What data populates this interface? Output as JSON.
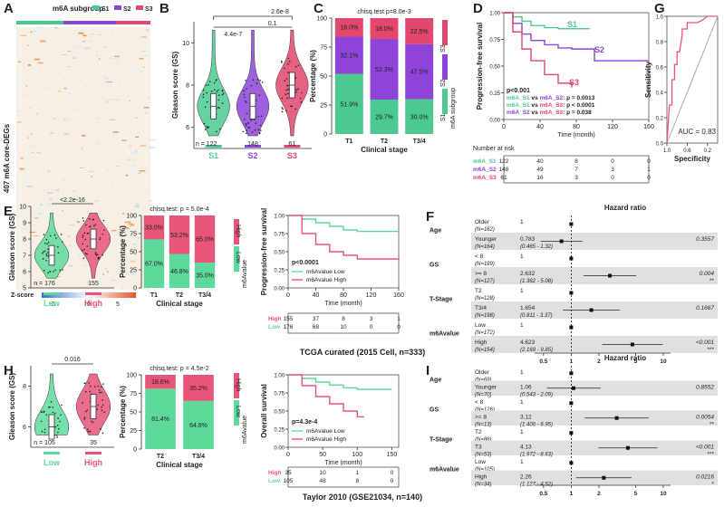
{
  "colors": {
    "s1": "#4cc98f",
    "s2": "#8e44d9",
    "s3": "#e2476d",
    "low": "#5fd99a",
    "high": "#e8547a",
    "grid": "#d9d9d9"
  },
  "panel_labels": {
    "A": "A",
    "B": "B",
    "C": "C",
    "D": "D",
    "E": "E",
    "F": "F",
    "G": "G",
    "H": "H",
    "I": "I"
  },
  "section_titles": {
    "tcga": "TCGA curated (2015 Cell, n=333)",
    "taylor": "Taylor 2010 (GSE21034, n=140)"
  },
  "chart_data": [
    {
      "panel": "A",
      "type": "heatmap",
      "title": "m6A subgroup",
      "ylabel": "407 m6A core-DEGs",
      "groups": [
        "S1",
        "S2",
        "S3"
      ],
      "legend_title": "Z-score",
      "scale_ticks": [
        "-5",
        "0",
        "5"
      ]
    },
    {
      "panel": "B",
      "type": "violin",
      "ylabel": "Gleason score (GS)",
      "categories": [
        "S1",
        "S2",
        "S3"
      ],
      "medians": [
        7,
        7,
        8
      ],
      "ylim": [
        5,
        10
      ],
      "yticks": [
        "6",
        "8",
        "10"
      ],
      "counts": [
        "n = 122",
        "148",
        "61"
      ],
      "pvalues": {
        "s1_s3": "2.6e-8",
        "s1_s2": "4.4e-7",
        "s2_s3": "0.1"
      }
    },
    {
      "panel": "C",
      "type": "stacked-bar",
      "title": "chisq.test p=8.0e-3",
      "xlabel": "Clinical stage",
      "ylabel": "Percentage (%)",
      "categories": [
        "T1",
        "T2",
        "T3/4"
      ],
      "legend_title": "m6A subgroup",
      "legend": [
        "S1",
        "S2",
        "S3"
      ],
      "series": [
        {
          "name": "S1",
          "values": [
            51.9,
            29.7,
            30.0
          ]
        },
        {
          "name": "S2",
          "values": [
            32.1,
            52.3,
            47.5
          ]
        },
        {
          "name": "S3",
          "values": [
            16.0,
            18.0,
            22.5
          ]
        }
      ],
      "yticks": [
        "0",
        "25",
        "50",
        "75",
        "100"
      ]
    },
    {
      "panel": "D",
      "type": "line",
      "title": "",
      "xlabel": "Time (month)",
      "ylabel": "Progression-free survival",
      "xticks": [
        "0",
        "40",
        "80",
        "120",
        "160"
      ],
      "yticks": [
        "0.00",
        "0.25",
        "0.50",
        "0.75",
        "1.00"
      ],
      "series": [
        {
          "name": "S1",
          "x": [
            0,
            10,
            20,
            30,
            45,
            60,
            75,
            95
          ],
          "y": [
            1.0,
            0.96,
            0.92,
            0.88,
            0.86,
            0.85,
            0.85,
            0.85
          ]
        },
        {
          "name": "S2",
          "x": [
            0,
            10,
            20,
            30,
            45,
            60,
            75,
            100,
            160
          ],
          "y": [
            1.0,
            0.9,
            0.8,
            0.74,
            0.7,
            0.67,
            0.66,
            0.55,
            0.55
          ]
        },
        {
          "name": "S3",
          "x": [
            0,
            10,
            20,
            30,
            45,
            60,
            75
          ],
          "y": [
            1.0,
            0.82,
            0.66,
            0.55,
            0.42,
            0.34,
            0.3
          ]
        }
      ],
      "stats": [
        "p<0.001",
        "m6A_S1 vs m6A_S2: p = 0.0013",
        "m6A_S1 vs m6A_S3: p < 0.0001",
        "m6A_S2 vs m6A_S3: p = 0.038"
      ],
      "risk_title": "Number at risk",
      "risk": [
        {
          "name": "m6A_S1",
          "values": [
            "122",
            "40",
            "8",
            "0",
            "0"
          ]
        },
        {
          "name": "m6A_S2",
          "values": [
            "148",
            "49",
            "7",
            "3",
            "1"
          ]
        },
        {
          "name": "m6A_S3",
          "values": [
            "61",
            "16",
            "3",
            "0",
            "0"
          ]
        }
      ]
    },
    {
      "panel": "G",
      "type": "line",
      "xlabel": "Specificity",
      "ylabel": "Sensitivity",
      "xticks": [
        "1.0",
        "0.6",
        "0.4",
        "0.2",
        "0.0"
      ],
      "yticks": [
        "0.0",
        "0.2",
        "0.4",
        "0.6",
        "0.8",
        "1.0"
      ],
      "auc": "AUC = 0.83",
      "x": [
        1.0,
        0.95,
        0.9,
        0.9,
        0.85,
        0.85,
        0.8,
        0.8,
        0.75,
        0.7,
        0.7,
        0.6,
        0.6,
        0.4,
        0.3,
        0.2,
        0.0
      ],
      "y": [
        0.0,
        0.3,
        0.3,
        0.5,
        0.5,
        0.62,
        0.62,
        0.72,
        0.72,
        0.85,
        0.9,
        0.9,
        0.95,
        0.95,
        0.97,
        1.0,
        1.0
      ]
    },
    {
      "panel": "E",
      "type": "violin",
      "ylabel": "Gleason score (GS)",
      "categories": [
        "Low",
        "High"
      ],
      "medians": [
        7,
        8
      ],
      "ylim": [
        5,
        10
      ],
      "yticks": [
        "5",
        "6",
        "7",
        "8",
        "9",
        "10"
      ],
      "counts": [
        "n = 176",
        "155"
      ],
      "pvalue": "<2.2e-16"
    },
    {
      "panel": "E2",
      "type": "stacked-bar",
      "title": "chisq.test: p = 5.0e-4",
      "xlabel": "Clinical stage",
      "ylabel": "Percentage (%)",
      "categories": [
        "T1",
        "T2",
        "T3/4"
      ],
      "legend_title": "m6Avalue",
      "legend": [
        "High",
        "Low"
      ],
      "series": [
        {
          "name": "Low",
          "values": [
            67.0,
            46.8,
            35.0
          ]
        },
        {
          "name": "High",
          "values": [
            33.0,
            53.2,
            65.0
          ]
        }
      ],
      "yticks": [
        "0",
        "25",
        "50",
        "75",
        "100"
      ]
    },
    {
      "panel": "E3",
      "type": "line",
      "xlabel": "Time (month)",
      "ylabel": "Progression-free survival",
      "xticks": [
        "0",
        "40",
        "80",
        "120",
        "160"
      ],
      "yticks": [
        "0.00",
        "0.25",
        "0.50",
        "0.75",
        "1.00"
      ],
      "pvalue": "p<0.0001",
      "legend": [
        "m6Avalue Low",
        "m6Avalue High"
      ],
      "series": [
        {
          "name": "Low",
          "x": [
            0,
            20,
            40,
            60,
            80,
            100,
            160
          ],
          "y": [
            1.0,
            0.95,
            0.9,
            0.85,
            0.8,
            0.78,
            0.78
          ]
        },
        {
          "name": "High",
          "x": [
            0,
            20,
            40,
            60,
            80,
            100,
            160
          ],
          "y": [
            1.0,
            0.75,
            0.6,
            0.5,
            0.45,
            0.4,
            0.38
          ]
        }
      ],
      "risk": [
        {
          "name": "High",
          "values": [
            "155",
            "37",
            "8",
            "3",
            "1"
          ]
        },
        {
          "name": "Low",
          "values": [
            "176",
            "68",
            "10",
            "0",
            "0"
          ]
        }
      ]
    },
    {
      "panel": "F",
      "type": "forest",
      "title": "Hazard ratio",
      "xticks": [
        "0.5",
        "1",
        "2",
        "5",
        "10"
      ],
      "rows": [
        {
          "var": "Age",
          "level": "Older",
          "n": "(N=162)",
          "hr": "1",
          "ci": "",
          "p": "",
          "sig": "",
          "value": 1,
          "lo": 1,
          "hi": 1
        },
        {
          "var": "",
          "level": "Younger",
          "n": "(N=164)",
          "hr": "0.783",
          "ci": "(0.465 - 1.32)",
          "p": "0.3557",
          "sig": "",
          "value": 0.783,
          "lo": 0.465,
          "hi": 1.32
        },
        {
          "var": "GS",
          "level": "< 8",
          "n": "(N=199)",
          "hr": "1",
          "ci": "",
          "p": "",
          "sig": "",
          "value": 1,
          "lo": 1,
          "hi": 1
        },
        {
          "var": "",
          "level": ">= 8",
          "n": "(N=127)",
          "hr": "2.632",
          "ci": "(1.362 - 5.08)",
          "p": "0.004",
          "sig": "**",
          "value": 2.632,
          "lo": 1.362,
          "hi": 5.08
        },
        {
          "var": "T-Stage",
          "level": "T2",
          "n": "(N=128)",
          "hr": "1",
          "ci": "",
          "p": "",
          "sig": "",
          "value": 1,
          "lo": 1,
          "hi": 1
        },
        {
          "var": "",
          "level": "T3/4",
          "n": "(N=198)",
          "hr": "1.654",
          "ci": "(0.811 - 3.37)",
          "p": "0.1667",
          "sig": "",
          "value": 1.654,
          "lo": 0.811,
          "hi": 3.37
        },
        {
          "var": "m6Avalue",
          "level": "Low",
          "n": "(N=172)",
          "hr": "1",
          "ci": "",
          "p": "",
          "sig": "",
          "value": 1,
          "lo": 1,
          "hi": 1
        },
        {
          "var": "",
          "level": "High",
          "n": "(N=154)",
          "hr": "4.623",
          "ci": "(2.169 - 9.85)",
          "p": "<0.001",
          "sig": "***",
          "value": 4.623,
          "lo": 2.169,
          "hi": 9.85
        }
      ]
    },
    {
      "panel": "H",
      "type": "violin",
      "ylabel": "Gleason score (GS)",
      "categories": [
        "Low",
        "High"
      ],
      "medians": [
        6,
        7
      ],
      "ylim": [
        5,
        9
      ],
      "yticks": [
        "6",
        "8"
      ],
      "counts": [
        "n = 105",
        "35"
      ],
      "pvalue": "0.016"
    },
    {
      "panel": "H2",
      "type": "stacked-bar",
      "title": "chisq.test: p = 4.5e-2",
      "xlabel": "Clinical stage",
      "ylabel": "Percentage (%)",
      "categories": [
        "T2",
        "T3/4"
      ],
      "legend_title": "m6Avalue",
      "legend": [
        "High",
        "Low"
      ],
      "series": [
        {
          "name": "Low",
          "values": [
            81.4,
            64.8
          ]
        },
        {
          "name": "High",
          "values": [
            18.6,
            35.2
          ]
        }
      ],
      "yticks": [
        "0",
        "25",
        "50",
        "75",
        "100"
      ]
    },
    {
      "panel": "H3",
      "type": "line",
      "xlabel": "Time (month)",
      "ylabel": "Overall survival",
      "xticks": [
        "0",
        "50",
        "100",
        "150"
      ],
      "yticks": [
        "0.00",
        "0.25",
        "0.50",
        "0.75",
        "1.00"
      ],
      "pvalue": "p=4.3e-4",
      "legend": [
        "m6Avalue Low",
        "m6Avalue High"
      ],
      "series": [
        {
          "name": "Low",
          "x": [
            0,
            20,
            40,
            60,
            80,
            100,
            120,
            150
          ],
          "y": [
            1.0,
            0.95,
            0.9,
            0.86,
            0.82,
            0.8,
            0.8,
            0.8
          ]
        },
        {
          "name": "High",
          "x": [
            0,
            20,
            40,
            60,
            80,
            100,
            110
          ],
          "y": [
            1.0,
            0.85,
            0.7,
            0.6,
            0.5,
            0.42,
            0.42
          ]
        }
      ],
      "risk": [
        {
          "name": "High",
          "values": [
            "35",
            "10",
            "1",
            "0"
          ]
        },
        {
          "name": "Low",
          "values": [
            "105",
            "48",
            "8",
            "0"
          ]
        }
      ]
    },
    {
      "panel": "I",
      "type": "forest",
      "title": "Hazard ratio",
      "xticks": [
        "0.5",
        "1",
        "2",
        "5",
        "10"
      ],
      "rows": [
        {
          "var": "Age",
          "level": "Older",
          "n": "(N=69)",
          "hr": "1",
          "ci": "",
          "p": "",
          "sig": "",
          "value": 1,
          "lo": 1,
          "hi": 1
        },
        {
          "var": "",
          "level": "Younger",
          "n": "(N=70)",
          "hr": "1.06",
          "ci": "(0.543 - 2.09)",
          "p": "0.8552",
          "sig": "",
          "value": 1.06,
          "lo": 0.543,
          "hi": 2.09
        },
        {
          "var": "GS",
          "level": "< 8",
          "n": "(N=126)",
          "hr": "1",
          "ci": "",
          "p": "",
          "sig": "",
          "value": 1,
          "lo": 1,
          "hi": 1
        },
        {
          "var": "",
          "level": ">= 8",
          "n": "(N=13)",
          "hr": "3.12",
          "ci": "(1.400 - 6.95)",
          "p": "0.0054",
          "sig": "**",
          "value": 3.12,
          "lo": 1.4,
          "hi": 6.95
        },
        {
          "var": "T-Stage",
          "level": "T2",
          "n": "(N=86)",
          "hr": "1",
          "ci": "",
          "p": "",
          "sig": "",
          "value": 1,
          "lo": 1,
          "hi": 1
        },
        {
          "var": "",
          "level": "T3",
          "n": "(N=53)",
          "hr": "4.13",
          "ci": "(1.972 - 8.63)",
          "p": "<0.001",
          "sig": "***",
          "value": 4.13,
          "lo": 1.972,
          "hi": 8.63
        },
        {
          "var": "m6Avalue",
          "level": "Low",
          "n": "(N=105)",
          "hr": "1",
          "ci": "",
          "p": "",
          "sig": "",
          "value": 1,
          "lo": 1,
          "hi": 1
        },
        {
          "var": "",
          "level": "High",
          "n": "(N=34)",
          "hr": "2.26",
          "ci": "(1.127 - 4.52)",
          "p": "0.0216",
          "sig": "*",
          "value": 2.26,
          "lo": 1.127,
          "hi": 4.52
        }
      ]
    }
  ]
}
